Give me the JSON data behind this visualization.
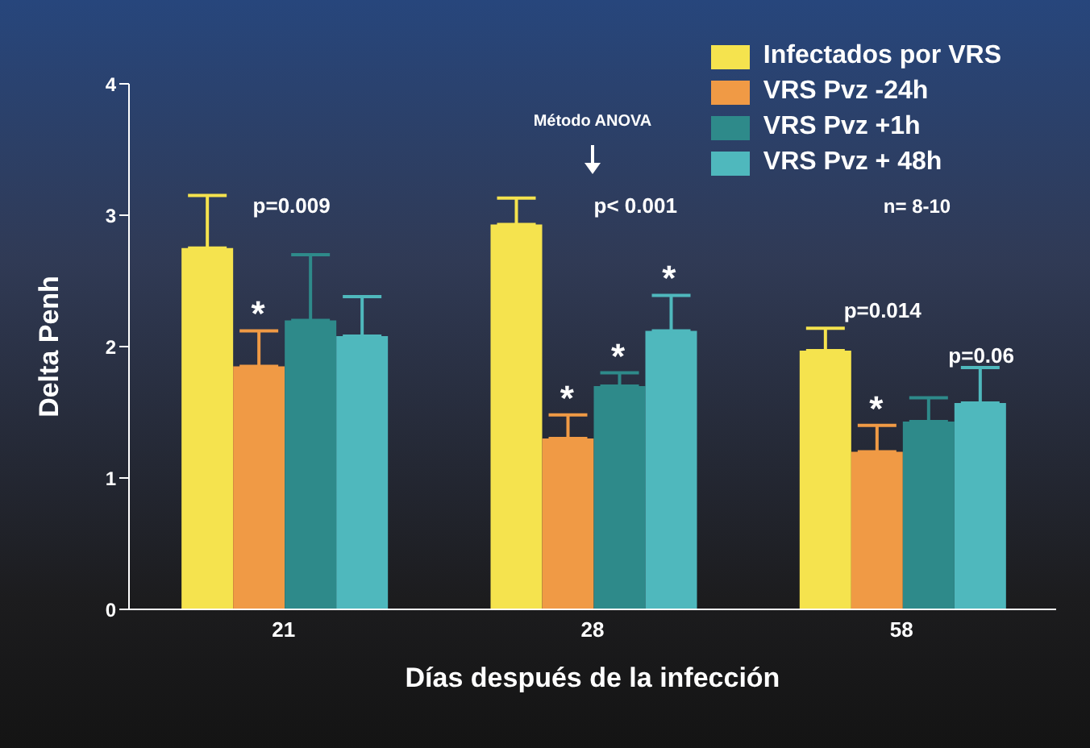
{
  "chart_data": {
    "type": "bar",
    "categories": [
      "21",
      "28",
      "58"
    ],
    "series": [
      {
        "name": "Infectados por VRS",
        "color": "#f5e34e",
        "values": [
          2.75,
          2.93,
          1.97
        ],
        "errors": [
          0.4,
          0.2,
          0.17
        ]
      },
      {
        "name": "VRS Pvz -24h",
        "color": "#f09a45",
        "values": [
          1.85,
          1.3,
          1.2
        ],
        "errors": [
          0.27,
          0.18,
          0.2
        ]
      },
      {
        "name": "VRS Pvz +1h",
        "color": "#2e8a8a",
        "values": [
          2.2,
          1.7,
          1.43
        ],
        "errors": [
          0.5,
          0.1,
          0.18
        ]
      },
      {
        "name": "VRS Pvz + 48h",
        "color": "#4fb8bd",
        "values": [
          2.08,
          2.12,
          1.57
        ],
        "errors": [
          0.3,
          0.27,
          0.27
        ]
      }
    ],
    "xlabel": "Días después de la infección",
    "ylabel": "Delta Penh",
    "ylim": [
      0,
      4
    ],
    "yticks": [
      0,
      1,
      2,
      3,
      4
    ],
    "legend": "top right",
    "annotations": [
      "Método ANOVA",
      "n= 8-10",
      "p=0.009",
      "p< 0.001",
      "p=0.014",
      "p=0.06",
      "*",
      "*",
      "*",
      "*",
      "*"
    ]
  }
}
